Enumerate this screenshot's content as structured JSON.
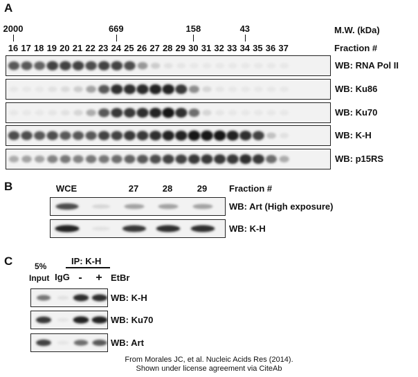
{
  "panel_a": {
    "letter": "A",
    "mw_header": "M.W. (kDa)",
    "mw_markers": [
      {
        "label": "2000",
        "fraction": "16"
      },
      {
        "label": "669",
        "fraction": "24"
      },
      {
        "label": "158",
        "fraction": "30"
      },
      {
        "label": "43",
        "fraction": "34"
      }
    ],
    "fraction_header": "Fraction #",
    "fractions": [
      "16",
      "17",
      "18",
      "19",
      "20",
      "21",
      "22",
      "23",
      "24",
      "25",
      "26",
      "27",
      "28",
      "29",
      "30",
      "31",
      "32",
      "33",
      "34",
      "35",
      "36",
      "37"
    ],
    "blots": [
      {
        "label": "WB: RNA Pol II",
        "intensity": [
          0.7,
          0.7,
          0.65,
          0.8,
          0.8,
          0.8,
          0.75,
          0.8,
          0.8,
          0.75,
          0.4,
          0.15,
          0.05,
          0.03,
          0.02,
          0.02,
          0.02,
          0.02,
          0.02,
          0.02,
          0.02,
          0.02
        ]
      },
      {
        "label": "WB: Ku86",
        "intensity": [
          0.02,
          0.02,
          0.02,
          0.05,
          0.08,
          0.15,
          0.35,
          0.7,
          0.9,
          0.9,
          0.92,
          0.95,
          0.95,
          0.85,
          0.45,
          0.1,
          0.03,
          0.02,
          0.02,
          0.02,
          0.02,
          0.02
        ]
      },
      {
        "label": "WB: Ku70",
        "intensity": [
          0.02,
          0.02,
          0.02,
          0.03,
          0.05,
          0.1,
          0.3,
          0.7,
          0.85,
          0.85,
          0.9,
          0.95,
          1.0,
          0.9,
          0.6,
          0.1,
          0.03,
          0.02,
          0.02,
          0.02,
          0.02,
          0.02
        ]
      },
      {
        "label": "WB: K-H",
        "intensity": [
          0.75,
          0.75,
          0.7,
          0.75,
          0.7,
          0.7,
          0.7,
          0.8,
          0.8,
          0.85,
          0.85,
          0.9,
          0.95,
          0.95,
          1.0,
          1.0,
          1.0,
          0.95,
          0.9,
          0.8,
          0.2,
          0.05
        ]
      },
      {
        "label": "WB: p15RS",
        "intensity": [
          0.3,
          0.35,
          0.35,
          0.5,
          0.55,
          0.5,
          0.55,
          0.55,
          0.6,
          0.65,
          0.7,
          0.75,
          0.8,
          0.8,
          0.85,
          0.85,
          0.85,
          0.85,
          0.9,
          0.85,
          0.6,
          0.3
        ]
      }
    ]
  },
  "panel_b": {
    "letter": "B",
    "lanes": [
      "WCE",
      "",
      "27",
      "28",
      "29"
    ],
    "fraction_header": "Fraction #",
    "blots": [
      {
        "label": "WB: Art (High exposure)",
        "intensity": [
          0.75,
          0.1,
          0.35,
          0.35,
          0.35
        ]
      },
      {
        "label": "WB: K-H",
        "intensity": [
          0.95,
          0.05,
          0.85,
          0.9,
          0.9
        ]
      }
    ]
  },
  "panel_c": {
    "letter": "C",
    "input_label_top": "5%",
    "input_label_bottom": "Input",
    "ip_label": "IP: K-H",
    "lanes": [
      "IgG",
      "-",
      "+"
    ],
    "etbr_label": "EtBr",
    "blots": [
      {
        "label": "WB: K-H",
        "intensity": [
          0.55,
          0.05,
          0.9,
          0.9
        ]
      },
      {
        "label": "WB: Ku70",
        "intensity": [
          0.85,
          0.03,
          0.95,
          0.95
        ]
      },
      {
        "label": "WB: Art",
        "intensity": [
          0.8,
          0.03,
          0.6,
          0.7
        ]
      }
    ]
  },
  "credit": {
    "line1": "From Morales JC, et al. Nucleic Acids Res (2014).",
    "line2": "Shown under license agreement via CiteAb"
  }
}
